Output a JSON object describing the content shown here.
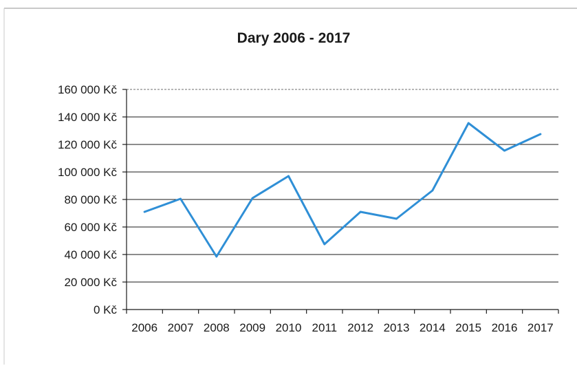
{
  "chart_data": {
    "type": "line",
    "title": "Dary 2006 - 2017",
    "xlabel": "",
    "ylabel": "",
    "x": [
      "2006",
      "2007",
      "2008",
      "2009",
      "2010",
      "2011",
      "2012",
      "2013",
      "2014",
      "2015",
      "2016",
      "2017"
    ],
    "series": [
      {
        "values": [
          71000,
          80500,
          38500,
          81000,
          97000,
          47500,
          71000,
          66000,
          86500,
          135500,
          115500,
          127500
        ]
      }
    ],
    "ylim": [
      0,
      160000
    ],
    "y_ticks": [
      0,
      20000,
      40000,
      60000,
      80000,
      100000,
      120000,
      140000,
      160000
    ],
    "y_tick_labels": [
      "0 Kč",
      "20 000 Kč",
      "40 000 Kč",
      "60 000 Kč",
      "80 000 Kč",
      "100 000 Kč",
      "120 000 Kč",
      "140 000 Kč",
      "160 000 Kč"
    ],
    "grid": true,
    "legend": "none",
    "colors": {
      "line": "#2f8fd6",
      "grid": "#1a1a1a",
      "text": "#1a1a1a",
      "frame": "#9a9a9a"
    }
  }
}
